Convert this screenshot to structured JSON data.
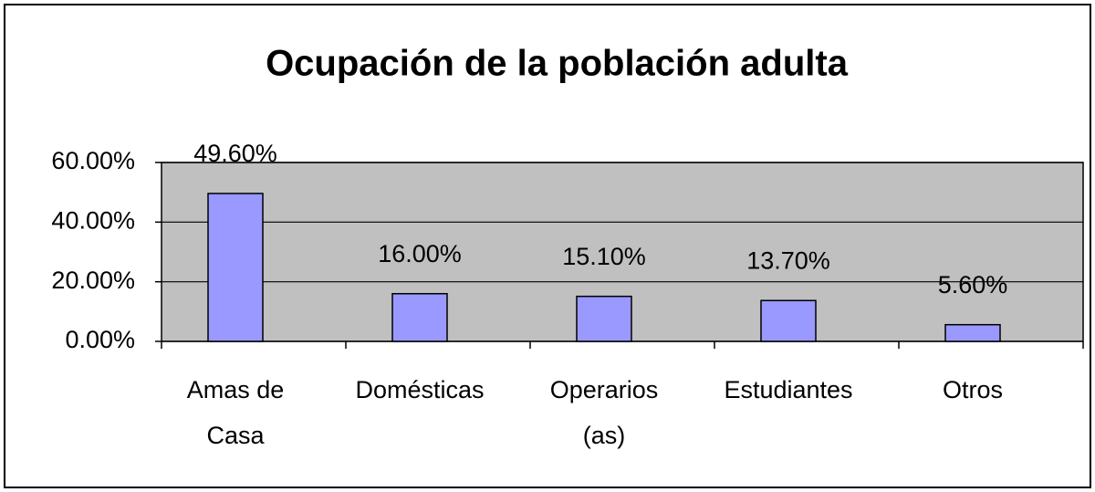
{
  "chart_data": {
    "type": "bar",
    "title": "Ocupación de la población adulta",
    "categories": [
      "Amas de Casa",
      "Domésticas",
      "Operarios (as)",
      "Estudiantes",
      "Otros"
    ],
    "values": [
      49.6,
      16.0,
      15.1,
      13.7,
      5.6
    ],
    "value_labels": [
      "49.60%",
      "16.00%",
      "15.10%",
      "13.70%",
      "5.60%"
    ],
    "color": "#9999ff",
    "ylim": [
      0,
      60
    ],
    "yticks": [
      {
        "value": 0,
        "label": "0.00%"
      },
      {
        "value": 20,
        "label": "20.00%"
      },
      {
        "value": 40,
        "label": "40.00%"
      },
      {
        "value": 60,
        "label": "60.00%"
      }
    ],
    "grid": true
  }
}
